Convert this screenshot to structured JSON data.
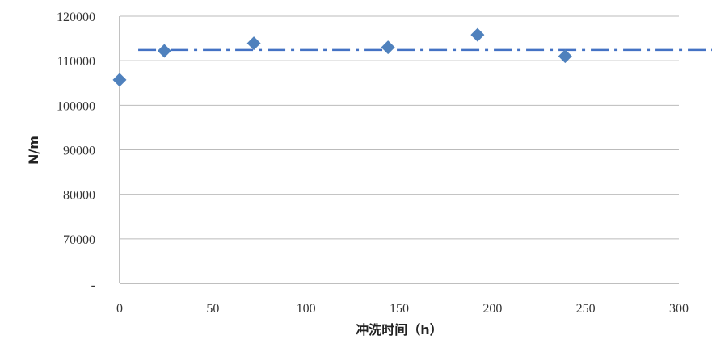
{
  "chart_data": {
    "type": "scatter",
    "title": "",
    "xlabel": "冲洗时间（h）",
    "ylabel": "N/m",
    "xlim": [
      0,
      300
    ],
    "ylim": [
      60000,
      120000
    ],
    "x_ticks": [
      "0",
      "50",
      "100",
      "150",
      "200",
      "250",
      "300"
    ],
    "y_ticks": [
      "-",
      "70000",
      "80000",
      "90000",
      "100000",
      "110000",
      "120000"
    ],
    "grid": "horizontal",
    "series": [
      {
        "marker": "diamond",
        "color": "#4f81bd",
        "points": [
          [
            0,
            105700
          ],
          [
            24,
            112200
          ],
          [
            72,
            113900
          ],
          [
            144,
            113000
          ],
          [
            192,
            115800
          ],
          [
            239,
            111000
          ]
        ]
      }
    ],
    "reference_line": {
      "style": "dash-dot",
      "color": "#4472c4",
      "y": 112400,
      "x_start": 10
    }
  }
}
